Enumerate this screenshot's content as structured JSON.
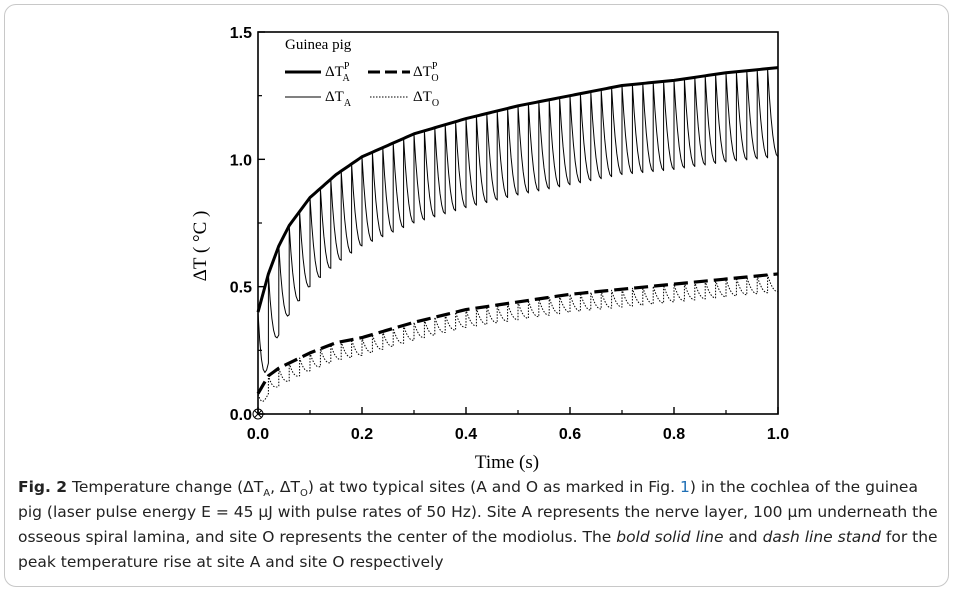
{
  "chart_data": {
    "type": "line",
    "title": "",
    "xlabel": "Time (s)",
    "ylabel": "ΔT ( °C )",
    "xlim": [
      0,
      1.0
    ],
    "ylim": [
      0,
      1.5
    ],
    "xticks": [
      "0.0",
      "0.2",
      "0.4",
      "0.6",
      "0.8",
      "1.0"
    ],
    "yticks": [
      "0.0",
      "0.5",
      "1.0",
      "1.5"
    ],
    "pulse_rate_hz": 50,
    "legend_title": "Guinea pig",
    "legend_placement": "top-left",
    "series": [
      {
        "name": "ΔT_A^P",
        "style": "bold solid",
        "x": [
          0.0,
          0.02,
          0.04,
          0.06,
          0.1,
          0.15,
          0.2,
          0.3,
          0.4,
          0.5,
          0.6,
          0.7,
          0.8,
          0.9,
          1.0
        ],
        "values": [
          0.4,
          0.55,
          0.66,
          0.74,
          0.85,
          0.94,
          1.01,
          1.1,
          1.16,
          1.21,
          1.25,
          1.29,
          1.31,
          1.34,
          1.36
        ]
      },
      {
        "name": "ΔT_O^P",
        "style": "bold dashed",
        "x": [
          0.0,
          0.02,
          0.04,
          0.06,
          0.1,
          0.15,
          0.2,
          0.3,
          0.4,
          0.5,
          0.6,
          0.7,
          0.8,
          0.9,
          1.0
        ],
        "values": [
          0.08,
          0.15,
          0.18,
          0.2,
          0.24,
          0.28,
          0.3,
          0.36,
          0.41,
          0.44,
          0.47,
          0.49,
          0.51,
          0.53,
          0.55
        ]
      },
      {
        "name": "ΔT_A",
        "style": "thin solid oscillating",
        "envelope_peak": "ΔT_A^P",
        "x": [
          0.0,
          0.02,
          0.04,
          0.06,
          0.1,
          0.15,
          0.2,
          0.3,
          0.4,
          0.5,
          0.6,
          0.7,
          0.8,
          0.9,
          1.0
        ],
        "trough_values": [
          0.0,
          0.2,
          0.31,
          0.39,
          0.5,
          0.59,
          0.66,
          0.75,
          0.81,
          0.86,
          0.9,
          0.94,
          0.96,
          0.99,
          1.01
        ]
      },
      {
        "name": "ΔT_O",
        "style": "thin dotted oscillating",
        "envelope_peak": "ΔT_O^P",
        "x": [
          0.0,
          0.02,
          0.04,
          0.06,
          0.1,
          0.15,
          0.2,
          0.3,
          0.4,
          0.5,
          0.6,
          0.7,
          0.8,
          0.9,
          1.0
        ],
        "trough_values": [
          0.0,
          0.08,
          0.11,
          0.13,
          0.17,
          0.21,
          0.23,
          0.29,
          0.34,
          0.37,
          0.4,
          0.42,
          0.44,
          0.46,
          0.48
        ]
      }
    ]
  },
  "legend": {
    "title": "Guinea pig",
    "items": [
      {
        "base": "ΔT",
        "sub": "A",
        "sup": "P",
        "style": "bold-solid"
      },
      {
        "base": "ΔT",
        "sub": "O",
        "sup": "P",
        "style": "bold-dashed"
      },
      {
        "base": "ΔT",
        "sub": "A",
        "sup": "",
        "style": "thin-solid"
      },
      {
        "base": "ΔT",
        "sub": "O",
        "sup": "",
        "style": "thin-dotted"
      }
    ]
  },
  "caption": {
    "fig_label": "Fig. 2",
    "text_1": "  Temperature change (ΔT",
    "sub_a": "A",
    "text_2": ", ΔT",
    "sub_o": "O",
    "text_3": ") at two typical sites (A and O as marked in Fig. ",
    "fig_ref": "1",
    "text_4": ") in the cochlea of the guinea pig (laser pulse energy E = 45 μJ with pulse rates of 50 Hz). Site A represents the nerve layer, 100 μm underneath the osseous spiral lamina, and site O represents the center of the modiolus. The ",
    "em_1": "bold solid line",
    "text_5": " and ",
    "em_2": "dash line stand",
    "text_6": " for the peak temperature rise at site A and site O respectively"
  }
}
